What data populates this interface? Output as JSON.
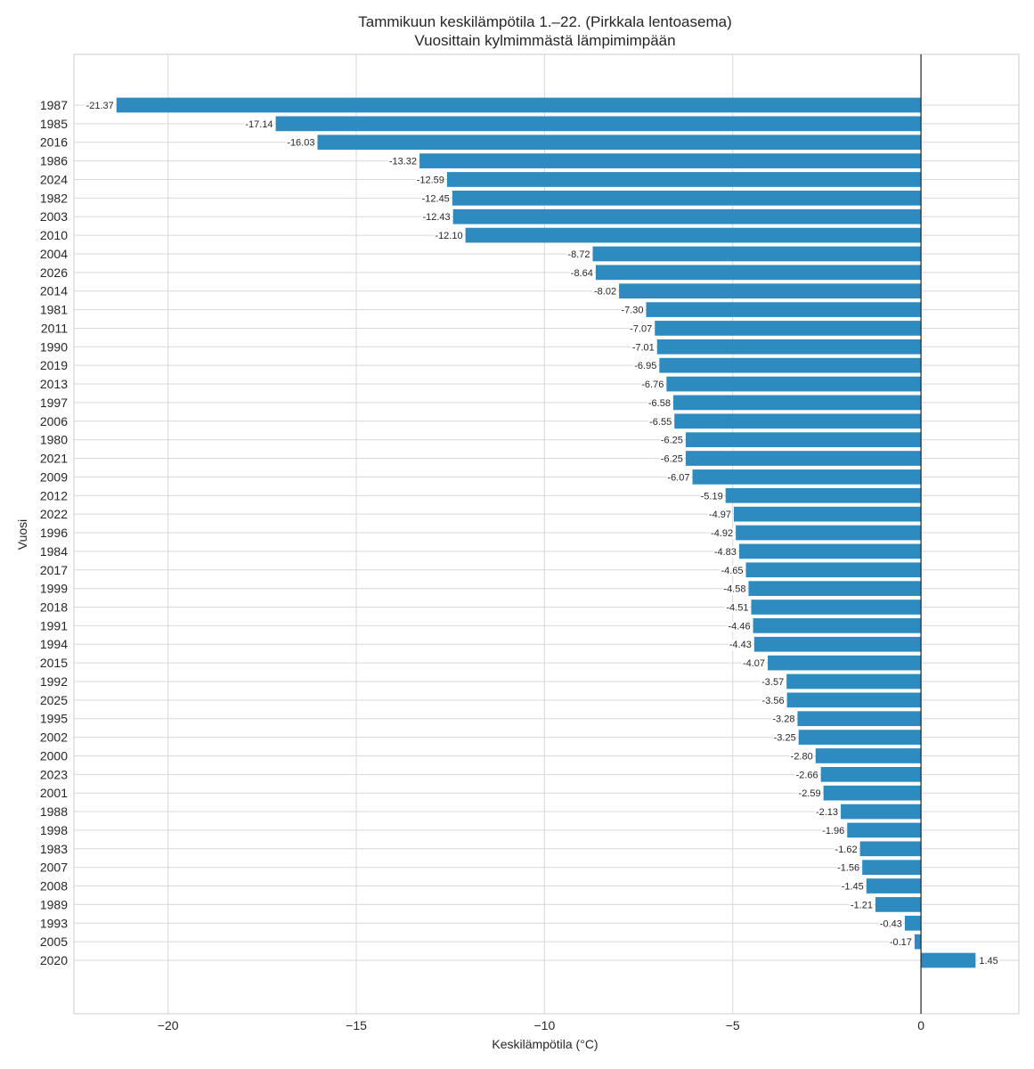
{
  "chart_data": {
    "type": "bar",
    "orientation": "horizontal",
    "title": "Tammikuun keskilämpötila 1.–22. (Pirkkala lentoasema)",
    "subtitle": "Vuosittain kylmimmästä lämpimimpään",
    "xlabel": "Keskilämpötila (°C)",
    "ylabel": "Vuosi",
    "xlim": [
      -22.5,
      2.6
    ],
    "xticks": [
      -20,
      -15,
      -10,
      -5,
      0
    ],
    "xtick_labels": [
      "−20",
      "−15",
      "−10",
      "−5",
      "0"
    ],
    "grid": true,
    "bar_color": "#2e8bc0",
    "categories": [
      "1987",
      "1985",
      "2016",
      "1986",
      "2024",
      "1982",
      "2003",
      "2010",
      "2004",
      "2026",
      "2014",
      "1981",
      "2011",
      "1990",
      "2019",
      "2013",
      "1997",
      "2006",
      "1980",
      "2021",
      "2009",
      "2012",
      "2022",
      "1996",
      "1984",
      "2017",
      "1999",
      "2018",
      "1991",
      "1994",
      "2015",
      "1992",
      "2025",
      "1995",
      "2002",
      "2000",
      "2023",
      "2001",
      "1988",
      "1998",
      "1983",
      "2007",
      "2008",
      "1989",
      "1993",
      "2005",
      "2020"
    ],
    "values": [
      -21.37,
      -17.14,
      -16.03,
      -13.32,
      -12.59,
      -12.45,
      -12.43,
      -12.1,
      -8.72,
      -8.64,
      -8.02,
      -7.3,
      -7.07,
      -7.01,
      -6.95,
      -6.76,
      -6.58,
      -6.55,
      -6.25,
      -6.25,
      -6.07,
      -5.19,
      -4.97,
      -4.92,
      -4.83,
      -4.65,
      -4.58,
      -4.51,
      -4.46,
      -4.43,
      -4.07,
      -3.57,
      -3.56,
      -3.28,
      -3.25,
      -2.8,
      -2.66,
      -2.59,
      -2.13,
      -1.96,
      -1.62,
      -1.56,
      -1.45,
      -1.21,
      -0.43,
      -0.17,
      1.45
    ],
    "value_labels": [
      "-21.37",
      "-17.14",
      "-16.03",
      "-13.32",
      "-12.59",
      "-12.45",
      "-12.43",
      "-12.10",
      "-8.72",
      "-8.64",
      "-8.02",
      "-7.30",
      "-7.07",
      "-7.01",
      "-6.95",
      "-6.76",
      "-6.58",
      "-6.55",
      "-6.25",
      "-6.25",
      "-6.07",
      "-5.19",
      "-4.97",
      "-4.92",
      "-4.83",
      "-4.65",
      "-4.58",
      "-4.51",
      "-4.46",
      "-4.43",
      "-4.07",
      "-3.57",
      "-3.56",
      "-3.28",
      "-3.25",
      "-2.80",
      "-2.66",
      "-2.59",
      "-2.13",
      "-1.96",
      "-1.62",
      "-1.56",
      "-1.45",
      "-1.21",
      "-0.43",
      "-0.17",
      "1.45"
    ]
  }
}
